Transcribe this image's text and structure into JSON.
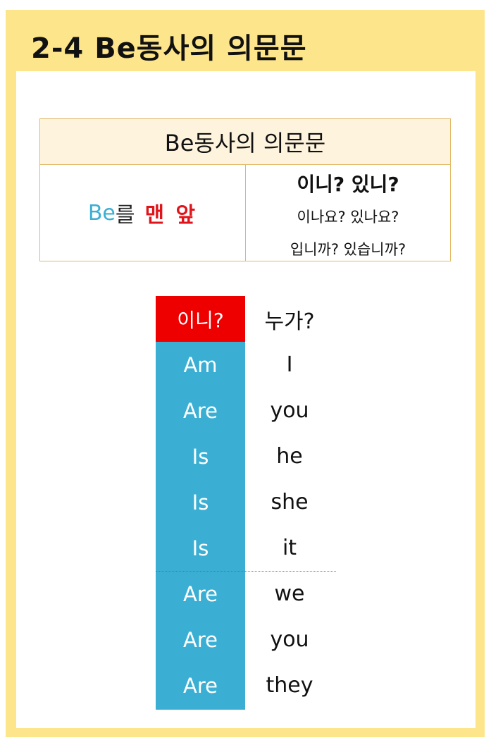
{
  "title": "2-4 Be동사의 의문문",
  "summary": {
    "header": "Be동사의 의문문",
    "rule_be": "Be",
    "rule_particle": "를",
    "rule_front": "맨 앞",
    "endings_main": "이니?  있니?",
    "endings_polite": "이나요?  있나요?",
    "endings_formal": "입니까?  있습니까?"
  },
  "conjugation": {
    "head_verb": "이니?",
    "head_who": "누가?",
    "rows": [
      {
        "verb": "Am",
        "pronoun": "I"
      },
      {
        "verb": "Are",
        "pronoun": "you"
      },
      {
        "verb": "Is",
        "pronoun": "he"
      },
      {
        "verb": "Is",
        "pronoun": "she"
      },
      {
        "verb": "Is",
        "pronoun": "it"
      },
      {
        "verb": "Are",
        "pronoun": "we"
      },
      {
        "verb": "Are",
        "pronoun": "you"
      },
      {
        "verb": "Are",
        "pronoun": "they"
      }
    ]
  },
  "colors": {
    "frame": "#fde58b",
    "header_bg": "#fef4de",
    "border": "#e2b968",
    "verb_blue": "#3aafd3",
    "question_red": "#ee0000"
  }
}
